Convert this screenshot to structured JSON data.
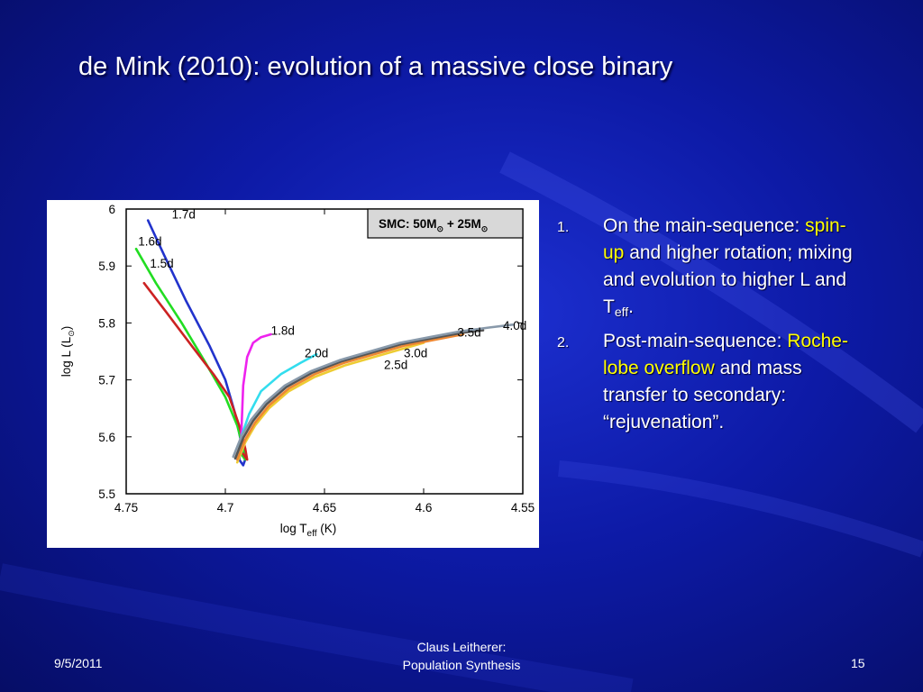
{
  "slide": {
    "title": "de Mink (2010): evolution of a massive close binary",
    "bullets": [
      {
        "number": "1.",
        "parts": [
          "On the main-sequence: ",
          "spin-up",
          " and higher rotation; mixing and evolution to higher L and T",
          "eff",
          "."
        ]
      },
      {
        "number": "2.",
        "parts": [
          "Post-main-sequence: ",
          "Roche-lobe overflow",
          " and mass transfer to secondary: “rejuvenation”."
        ]
      }
    ],
    "footer": {
      "date": "9/5/2011",
      "author_line1": "Claus Leitherer:",
      "author_line2": "Population Synthesis",
      "page_number": "15"
    },
    "colors": {
      "background": "#0d1aa6",
      "highlight": "#ffff00",
      "text": "#ffffff"
    }
  },
  "chart_data": {
    "type": "line",
    "box_label": {
      "prefix": "SMC: 50M",
      "middle": " + 25M",
      "sun_symbol": "⊙"
    },
    "xlabel": {
      "text": "log T",
      "sub": "eff",
      "suffix": " (K)"
    },
    "ylabel": {
      "text": "log L (L",
      "sun": "⊙",
      "suffix": ")"
    },
    "xlim": [
      4.75,
      4.55
    ],
    "ylim": [
      5.5,
      6.0
    ],
    "x_reversed": true,
    "xticks": [
      "4.75",
      "4.7",
      "4.65",
      "4.6",
      "4.55"
    ],
    "yticks": [
      "5.5",
      "5.6",
      "5.7",
      "5.8",
      "5.9",
      "6"
    ],
    "grid": false,
    "series": [
      {
        "name": "1.7d",
        "color": "#2233cc",
        "label_at": [
          4.727,
          5.983
        ],
        "x": [
          4.739,
          4.731,
          4.72,
          4.708,
          4.7,
          4.695,
          4.692,
          4.69,
          4.691,
          4.693,
          4.692,
          4.691
        ],
        "y": [
          5.98,
          5.92,
          5.84,
          5.76,
          5.7,
          5.64,
          5.59,
          5.56,
          5.55,
          5.56,
          5.58,
          5.57
        ]
      },
      {
        "name": "1.6d",
        "color": "#22dd22",
        "label_at": [
          4.744,
          5.936
        ],
        "x": [
          4.745,
          4.735,
          4.722,
          4.71,
          4.7,
          4.694,
          4.691,
          4.69,
          4.692
        ],
        "y": [
          5.93,
          5.87,
          5.8,
          5.73,
          5.67,
          5.62,
          5.58,
          5.56,
          5.57
        ]
      },
      {
        "name": "1.5d",
        "color": "#cc2222",
        "label_at": [
          4.738,
          5.897
        ],
        "x": [
          4.741,
          4.73,
          4.717,
          4.706,
          4.698,
          4.693,
          4.69,
          4.689,
          4.691
        ],
        "y": [
          5.87,
          5.82,
          5.76,
          5.71,
          5.67,
          5.62,
          5.58,
          5.56,
          5.57
        ]
      },
      {
        "name": "1.8d",
        "color": "#ee22ee",
        "label_at": [
          4.677,
          5.779
        ],
        "x": [
          4.692,
          4.691,
          4.689,
          4.686,
          4.682,
          4.677
        ],
        "y": [
          5.6,
          5.69,
          5.74,
          5.765,
          5.775,
          5.78
        ]
      },
      {
        "name": "2.0d",
        "color": "#33ddee",
        "label_at": [
          4.66,
          5.74
        ],
        "x": [
          4.694,
          4.692,
          4.688,
          4.682,
          4.672,
          4.662,
          4.654
        ],
        "y": [
          5.56,
          5.6,
          5.64,
          5.68,
          5.71,
          5.73,
          5.745
        ]
      },
      {
        "name": "2.5d",
        "color": "#eecc33",
        "label_at": [
          4.62,
          5.719
        ],
        "x": [
          4.694,
          4.69,
          4.685,
          4.678,
          4.668,
          4.655,
          4.64,
          4.625,
          4.61,
          4.6
        ],
        "y": [
          5.555,
          5.59,
          5.62,
          5.65,
          5.68,
          5.705,
          5.725,
          5.74,
          5.755,
          5.765
        ]
      },
      {
        "name": "3.0d",
        "color": "#ee8833",
        "label_at": [
          4.61,
          5.74
        ],
        "x": [
          4.694,
          4.69,
          4.685,
          4.678,
          4.668,
          4.655,
          4.64,
          4.625,
          4.61,
          4.595,
          4.58
        ],
        "y": [
          5.56,
          5.595,
          5.625,
          5.655,
          5.685,
          5.71,
          5.73,
          5.745,
          5.76,
          5.77,
          5.78
        ]
      },
      {
        "name": "3.5d",
        "color": "#555555",
        "label_at": [
          4.583,
          5.776
        ],
        "x": [
          4.695,
          4.691,
          4.686,
          4.679,
          4.669,
          4.656,
          4.641,
          4.626,
          4.611,
          4.596,
          4.58,
          4.57
        ],
        "y": [
          5.562,
          5.598,
          5.628,
          5.658,
          5.688,
          5.713,
          5.733,
          5.748,
          5.763,
          5.773,
          5.783,
          5.787
        ]
      },
      {
        "name": "4.0d",
        "color": "#8899aa",
        "label_at": [
          4.56,
          5.788
        ],
        "x": [
          4.696,
          4.692,
          4.687,
          4.68,
          4.67,
          4.657,
          4.642,
          4.627,
          4.612,
          4.597,
          4.582,
          4.567,
          4.555
        ],
        "y": [
          5.565,
          5.6,
          5.63,
          5.66,
          5.69,
          5.715,
          5.735,
          5.75,
          5.765,
          5.775,
          5.785,
          5.792,
          5.797
        ]
      }
    ]
  }
}
